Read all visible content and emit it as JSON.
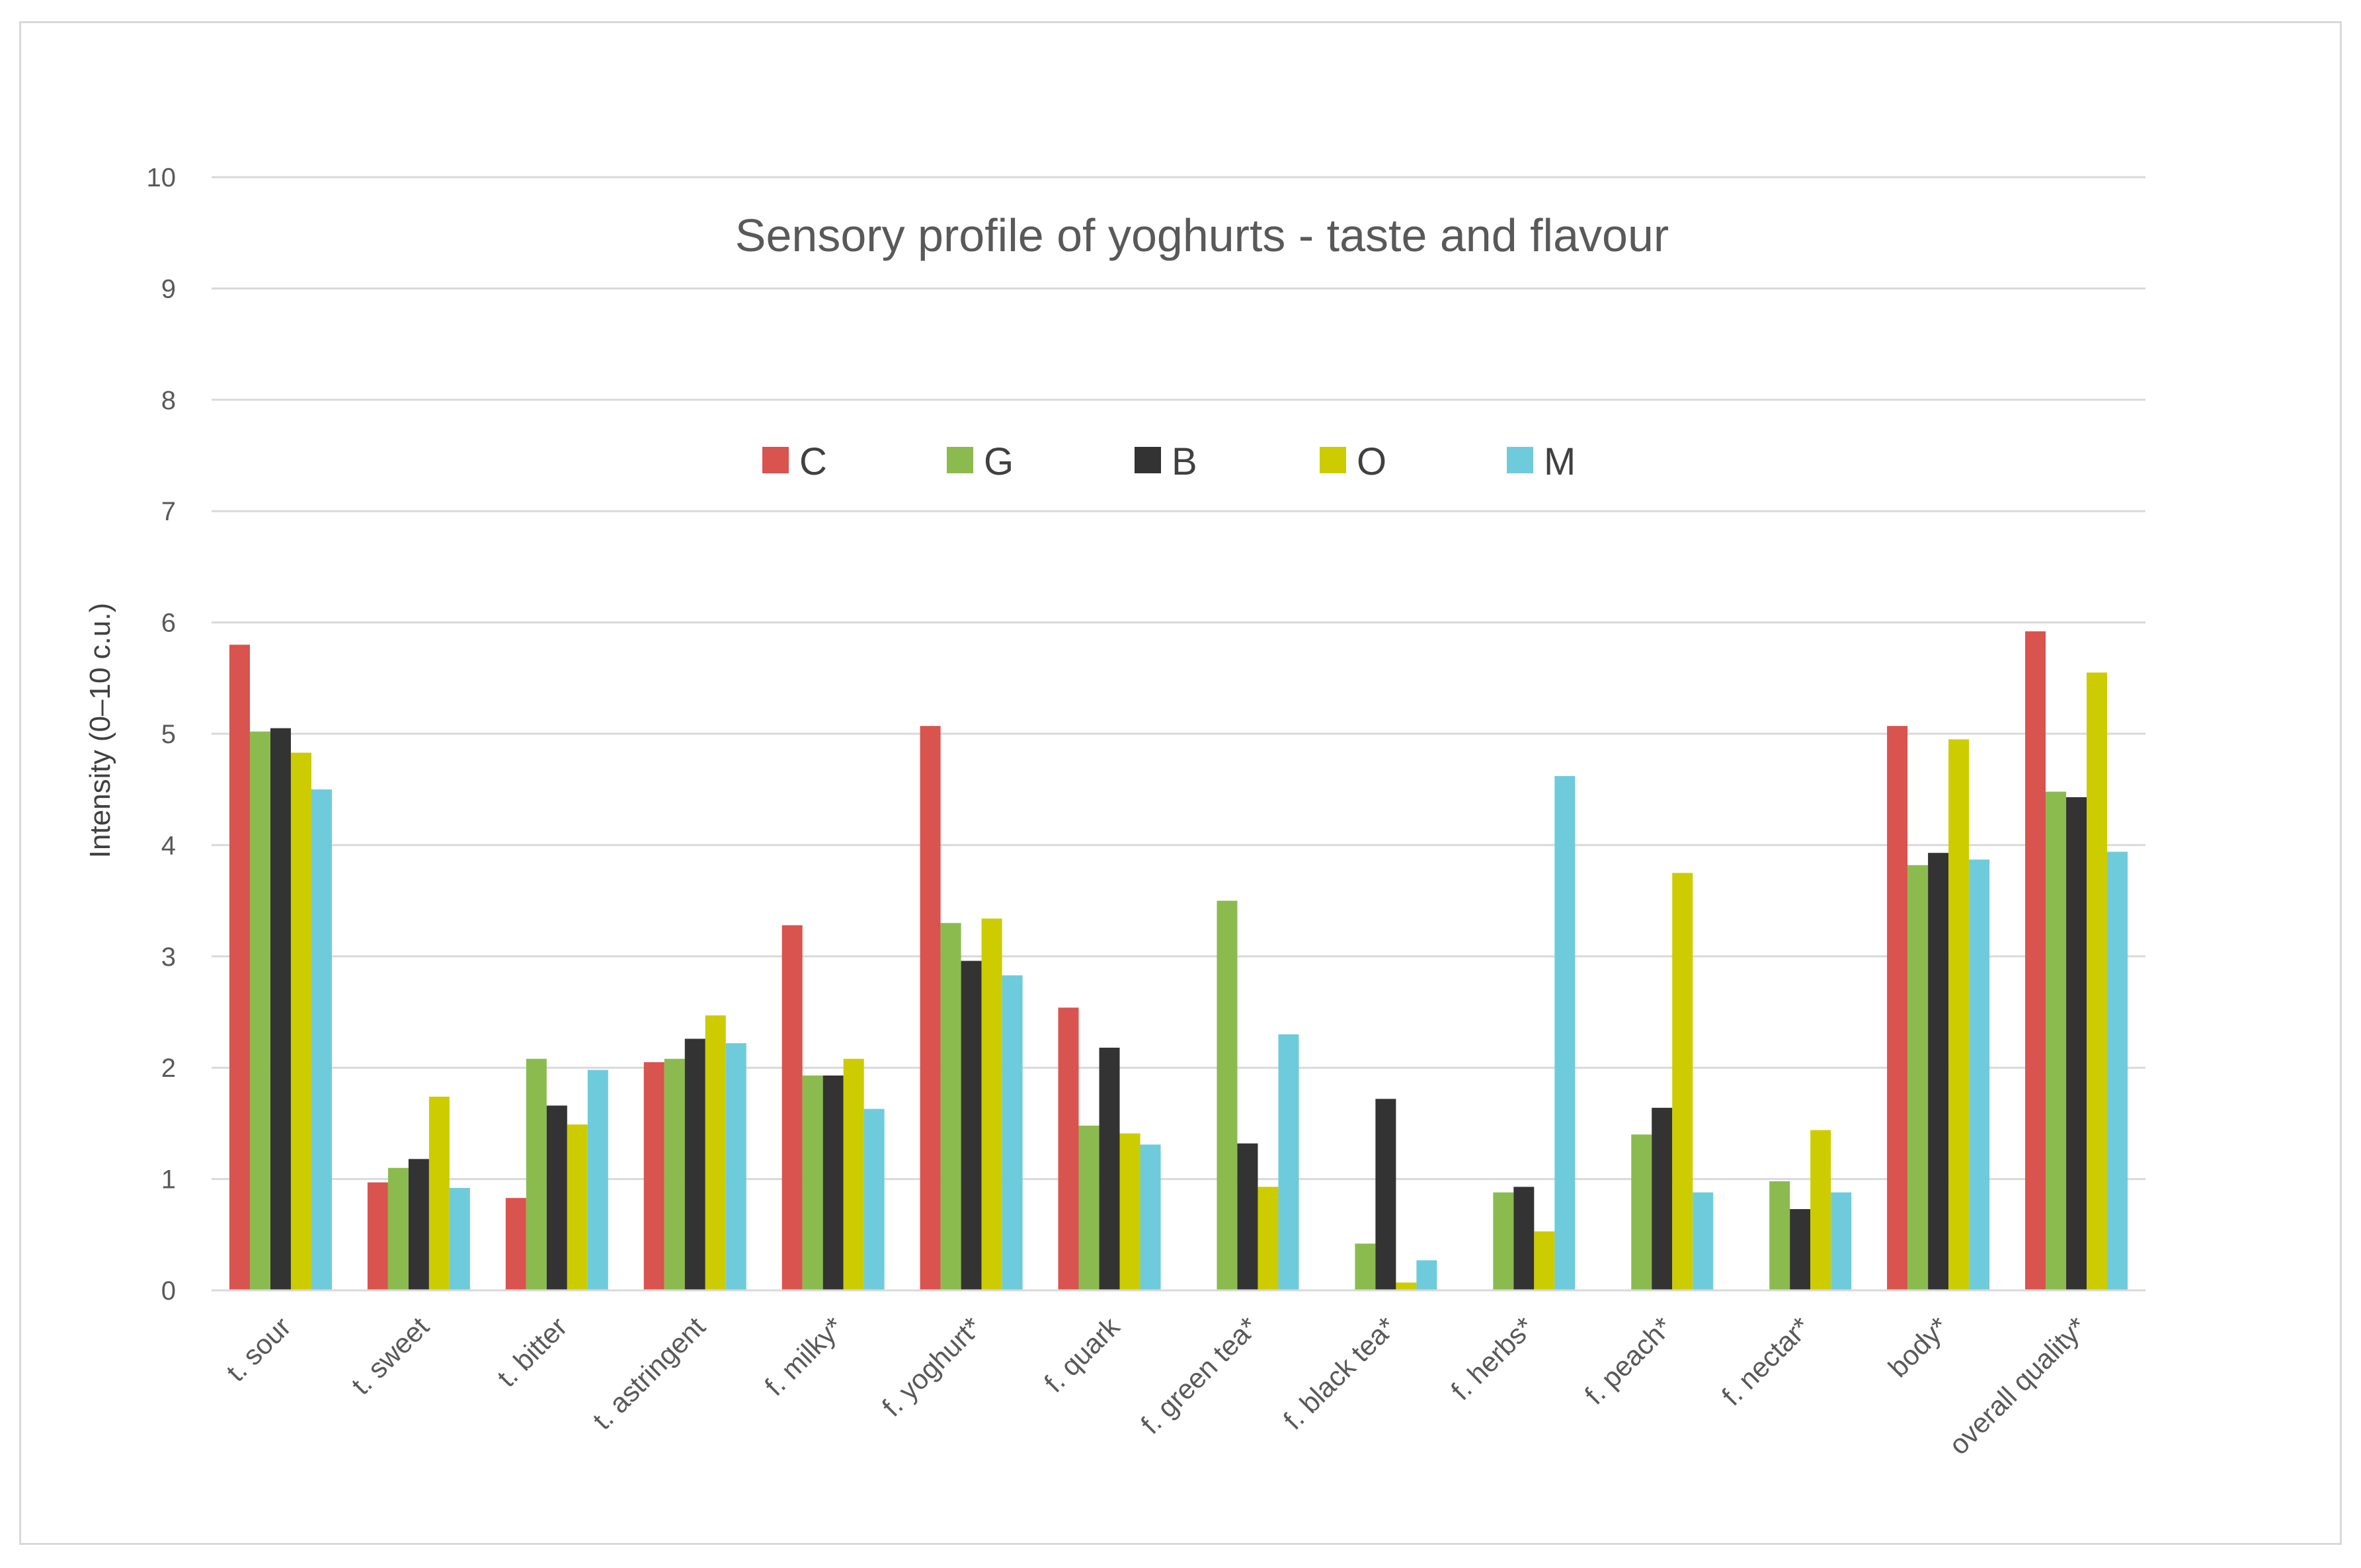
{
  "chart_data": {
    "type": "bar",
    "title": "Sensory profile of yoghurts - taste and flavour",
    "xlabel": "",
    "ylabel": "Intensity (0–10 c.u.)",
    "ylim": [
      0,
      10
    ],
    "yticks": [
      "0",
      "1",
      "2",
      "3",
      "4",
      "5",
      "6",
      "7",
      "8",
      "9",
      "10"
    ],
    "grid": true,
    "legend_position": "top-center",
    "categories": [
      "t. sour",
      "t. sweet",
      "t. bitter",
      "t. astringent",
      "f. milky*",
      "f. yoghurt*",
      "f. quark",
      "f. green tea*",
      "f. black tea*",
      "f. herbs*",
      "f. peach*",
      "f. nectar*",
      "body*",
      "overall quality*"
    ],
    "series": [
      {
        "name": "C",
        "color": "#d9534f",
        "values": [
          5.8,
          0.97,
          0.83,
          2.05,
          3.28,
          5.07,
          2.54,
          0,
          0,
          0,
          0,
          0,
          5.07,
          5.92
        ]
      },
      {
        "name": "G",
        "color": "#8bbb4f",
        "values": [
          5.02,
          1.1,
          2.08,
          2.08,
          1.93,
          3.3,
          1.48,
          3.5,
          0.42,
          0.88,
          1.4,
          0.98,
          3.82,
          4.48
        ]
      },
      {
        "name": "B",
        "color": "#333333",
        "values": [
          5.05,
          1.18,
          1.66,
          2.26,
          1.93,
          2.96,
          2.18,
          1.32,
          1.72,
          0.93,
          1.64,
          0.73,
          3.93,
          4.43
        ]
      },
      {
        "name": "O",
        "color": "#cccc00",
        "values": [
          4.83,
          1.74,
          1.49,
          2.47,
          2.08,
          3.34,
          1.41,
          0.93,
          0.07,
          0.53,
          3.75,
          1.44,
          4.95,
          5.55
        ]
      },
      {
        "name": "M",
        "color": "#6ecbdc",
        "values": [
          4.5,
          0.92,
          1.98,
          2.22,
          1.63,
          2.83,
          1.31,
          2.3,
          0.27,
          4.62,
          0.88,
          0.88,
          3.87,
          3.94
        ]
      }
    ]
  }
}
